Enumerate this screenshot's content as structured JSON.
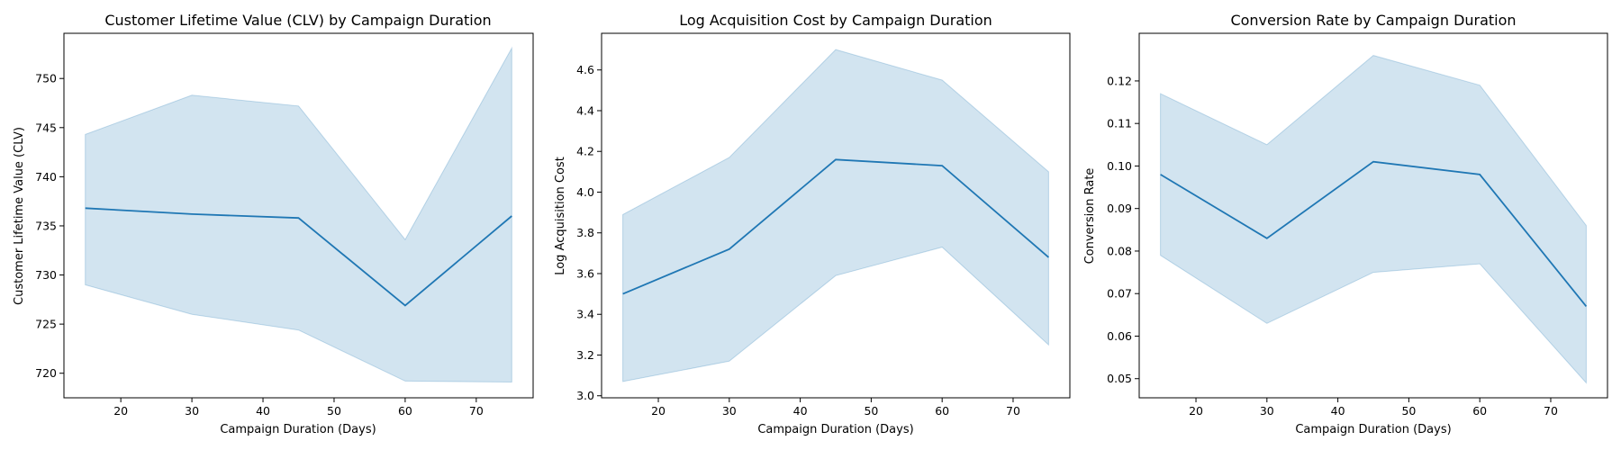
{
  "colors": {
    "line": "#1f77b4",
    "band": "#1f77b4"
  },
  "chart_data": [
    {
      "type": "line",
      "title": "Customer Lifetime Value (CLV) by Campaign Duration",
      "xlabel": "Campaign Duration (Days)",
      "ylabel": "Customer Lifetime Value (CLV)",
      "xlim": [
        12,
        78
      ],
      "ylim": [
        717.5,
        754.6
      ],
      "xticks": [
        20,
        30,
        40,
        50,
        60,
        70
      ],
      "yticks": [
        720,
        725,
        730,
        735,
        740,
        745,
        750
      ],
      "x": [
        15,
        30,
        45,
        60,
        75
      ],
      "y": [
        736.8,
        736.2,
        735.8,
        726.9,
        736.0
      ],
      "ci_lower": [
        729.0,
        726.0,
        724.4,
        719.2,
        719.1
      ],
      "ci_upper": [
        744.3,
        748.3,
        747.2,
        733.6,
        753.1
      ],
      "grid": false,
      "legend": "none"
    },
    {
      "type": "line",
      "title": "Log Acquisition Cost by Campaign Duration",
      "xlabel": "Campaign Duration (Days)",
      "ylabel": "Log Acquisition Cost",
      "xlim": [
        12,
        78
      ],
      "ylim": [
        2.99,
        4.78
      ],
      "xticks": [
        20,
        30,
        40,
        50,
        60,
        70
      ],
      "yticks": [
        3.0,
        3.2,
        3.4,
        3.6,
        3.8,
        4.0,
        4.2,
        4.4,
        4.6
      ],
      "ytick_decimals": 1,
      "x": [
        15,
        30,
        45,
        60,
        75
      ],
      "y": [
        3.5,
        3.72,
        4.16,
        4.13,
        3.68
      ],
      "ci_lower": [
        3.07,
        3.17,
        3.59,
        3.73,
        3.25
      ],
      "ci_upper": [
        3.89,
        4.17,
        4.7,
        4.55,
        4.1
      ],
      "grid": false,
      "legend": "none"
    },
    {
      "type": "line",
      "title": "Conversion Rate by Campaign Duration",
      "xlabel": "Campaign Duration (Days)",
      "ylabel": "Conversion Rate",
      "xlim": [
        12,
        78
      ],
      "ylim": [
        0.0455,
        0.1312
      ],
      "xticks": [
        20,
        30,
        40,
        50,
        60,
        70
      ],
      "yticks": [
        0.05,
        0.06,
        0.07,
        0.08,
        0.09,
        0.1,
        0.11,
        0.12
      ],
      "ytick_decimals": 2,
      "x": [
        15,
        30,
        45,
        60,
        75
      ],
      "y": [
        0.098,
        0.083,
        0.101,
        0.098,
        0.067
      ],
      "ci_lower": [
        0.079,
        0.063,
        0.075,
        0.077,
        0.049
      ],
      "ci_upper": [
        0.117,
        0.105,
        0.126,
        0.119,
        0.086
      ],
      "grid": false,
      "legend": "none"
    }
  ]
}
